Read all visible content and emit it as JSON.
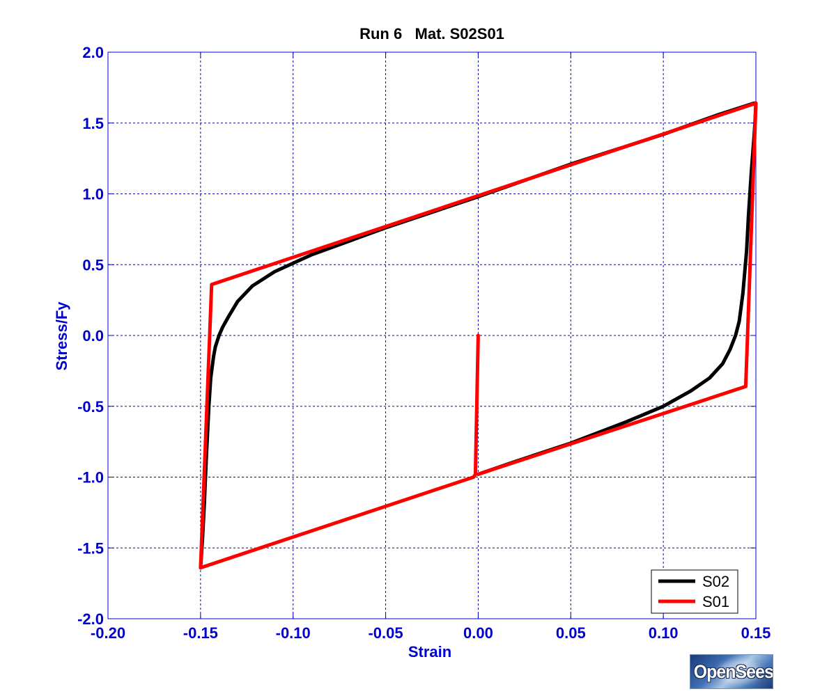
{
  "chart_data": {
    "type": "line",
    "title": "Run 6   Mat. S02S01",
    "xlabel": "Strain",
    "ylabel": "Stress/Fy",
    "xlim": [
      -0.2,
      0.15
    ],
    "ylim": [
      -2.0,
      2.0
    ],
    "xticks": [
      -0.2,
      -0.15,
      -0.1,
      -0.05,
      0.0,
      0.05,
      0.1,
      0.15
    ],
    "xtick_labels": [
      "-0.20",
      "-0.15",
      "-0.10",
      "-0.05",
      "0.00",
      "0.05",
      "0.10",
      "0.15"
    ],
    "yticks": [
      2.0,
      1.5,
      1.0,
      0.5,
      0.0,
      -0.5,
      -1.0,
      -1.5,
      -2.0
    ],
    "ytick_labels": [
      "2.0",
      "1.5",
      "1.0",
      "0.5",
      "0.0",
      "-0.5",
      "-1.0",
      "-1.5",
      "-2.0"
    ],
    "grid": true,
    "legend_position": "bottom-right",
    "colors": {
      "axis_text": "#0000cc",
      "grid": "#0000cc",
      "title": "#000000"
    },
    "series": [
      {
        "name": "S02",
        "color": "#000000",
        "x": [
          0.0,
          0.02,
          0.05,
          0.08,
          0.1,
          0.115,
          0.125,
          0.132,
          0.136,
          0.139,
          0.141,
          0.143,
          0.145,
          0.146,
          0.1475,
          0.149,
          0.1495,
          0.15,
          0.149,
          0.13,
          0.1,
          0.05,
          0.0,
          -0.05,
          -0.09,
          -0.11,
          -0.122,
          -0.13,
          -0.135,
          -0.138,
          -0.14,
          -0.142,
          -0.143,
          -0.1445,
          -0.1455,
          -0.147,
          -0.148,
          -0.149,
          -0.15
        ],
        "y": [
          -0.98,
          -0.89,
          -0.76,
          -0.61,
          -0.5,
          -0.39,
          -0.3,
          -0.2,
          -0.1,
          0.0,
          0.1,
          0.3,
          0.6,
          0.85,
          1.15,
          1.4,
          1.5,
          1.64,
          1.64,
          1.56,
          1.42,
          1.21,
          0.98,
          0.76,
          0.57,
          0.45,
          0.35,
          0.24,
          0.13,
          0.06,
          0.0,
          -0.08,
          -0.15,
          -0.3,
          -0.5,
          -0.9,
          -1.2,
          -1.45,
          -1.64
        ]
      },
      {
        "name": "S01",
        "color": "#ff0000",
        "x": [
          0.0,
          -0.0015,
          -0.0025,
          -0.15,
          -0.144,
          0.15,
          0.1445,
          0.0
        ],
        "y": [
          0.0,
          -0.98,
          -1.0,
          -1.64,
          0.36,
          1.64,
          -0.36,
          -0.98
        ]
      }
    ]
  },
  "logo": {
    "text": "OpenSees"
  }
}
